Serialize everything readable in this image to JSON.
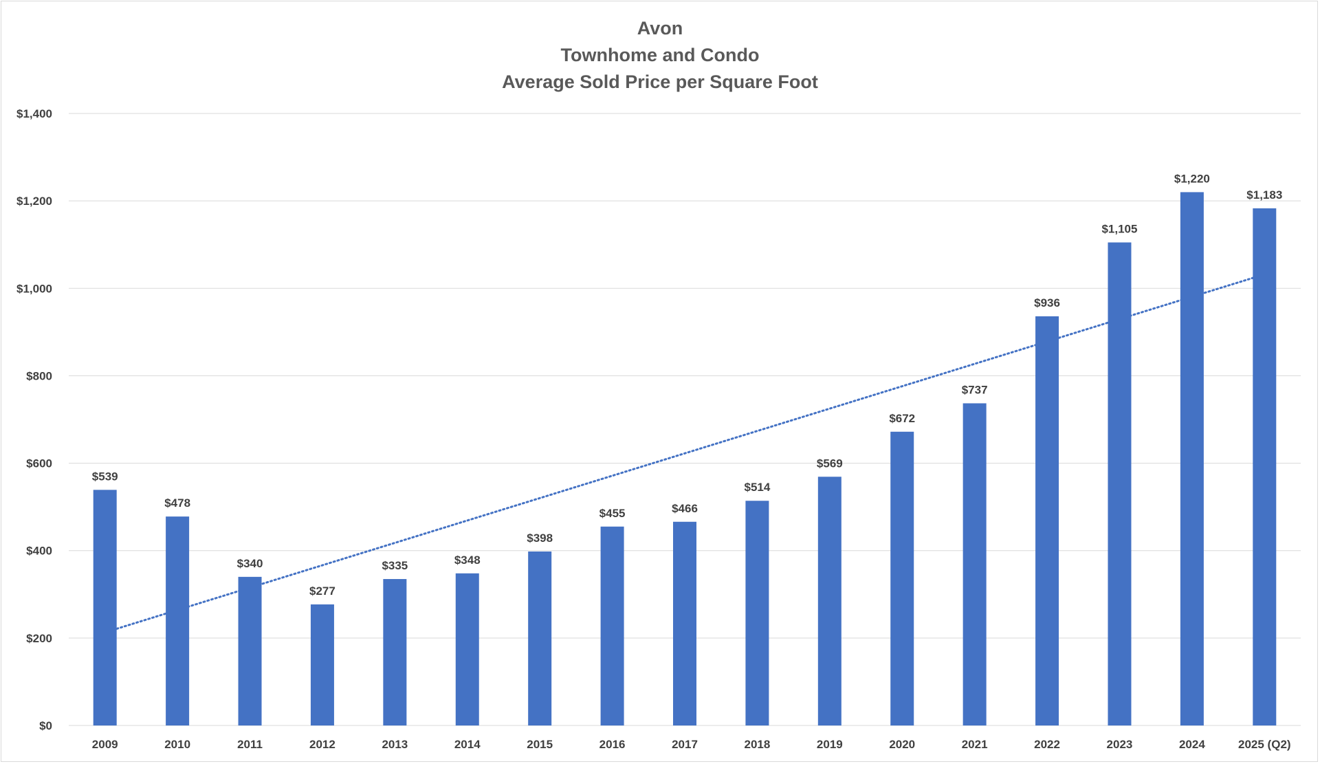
{
  "chart_data": {
    "type": "bar",
    "title_lines": [
      "Avon",
      "Townhome and Condo",
      "Average Sold Price per Square Foot"
    ],
    "categories": [
      "2009",
      "2010",
      "2011",
      "2012",
      "2013",
      "2014",
      "2015",
      "2016",
      "2017",
      "2018",
      "2019",
      "2020",
      "2021",
      "2022",
      "2023",
      "2024",
      "2025 (Q2)"
    ],
    "values": [
      539,
      478,
      340,
      277,
      335,
      348,
      398,
      455,
      466,
      514,
      569,
      672,
      737,
      936,
      1105,
      1220,
      1183
    ],
    "data_labels": [
      "$539",
      "$478",
      "$340",
      "$277",
      "$335",
      "$348",
      "$398",
      "$455",
      "$466",
      "$514",
      "$569",
      "$672",
      "$737",
      "$936",
      "$1,105",
      "$1,220",
      "$1,183"
    ],
    "ylim": [
      0,
      1400
    ],
    "y_ticks": [
      0,
      200,
      400,
      600,
      800,
      1000,
      1200,
      1400
    ],
    "y_tick_labels": [
      "$0",
      "$200",
      "$400",
      "$600",
      "$800",
      "$1,000",
      "$1,200",
      "$1,400"
    ],
    "grid": true,
    "trendline": {
      "type": "linear",
      "style": "dotted",
      "start_value": 213,
      "end_value": 1032
    },
    "colors": {
      "bar": "#4472c4",
      "trendline": "#4472c4",
      "grid": "#d9d9d9",
      "text": "#404040",
      "title": "#595959"
    }
  }
}
